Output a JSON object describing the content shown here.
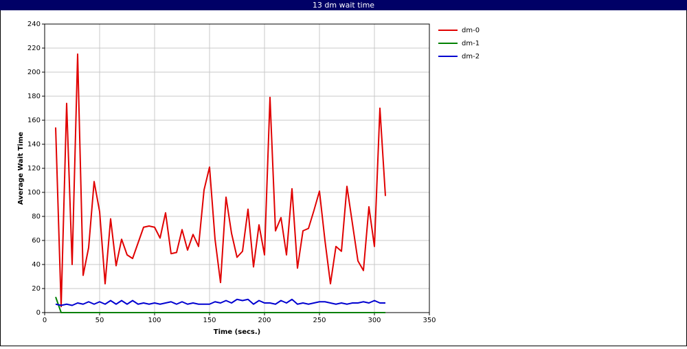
{
  "chart_data": {
    "type": "line",
    "title": "13 dm wait time",
    "x_label": "Time (secs.)",
    "y_label": "Average Wait Time",
    "x": [
      10,
      15,
      20,
      25,
      30,
      35,
      40,
      45,
      50,
      55,
      60,
      65,
      70,
      75,
      80,
      85,
      90,
      95,
      100,
      105,
      110,
      115,
      120,
      125,
      130,
      135,
      140,
      145,
      150,
      155,
      160,
      165,
      170,
      175,
      180,
      185,
      190,
      195,
      200,
      205,
      210,
      215,
      220,
      225,
      230,
      235,
      240,
      245,
      250,
      255,
      260,
      265,
      270,
      275,
      280,
      285,
      290,
      295,
      300,
      305,
      310
    ],
    "series": [
      {
        "name": "dm-0",
        "color": "#e00000",
        "values": [
          154,
          5,
          174,
          40,
          215,
          31,
          54,
          109,
          84,
          24,
          78,
          39,
          61,
          48,
          45,
          58,
          71,
          72,
          71,
          62,
          83,
          49,
          50,
          69,
          52,
          65,
          55,
          102,
          121,
          61,
          25,
          96,
          66,
          46,
          51,
          86,
          38,
          73,
          48,
          179,
          68,
          79,
          48,
          103,
          37,
          68,
          70,
          85,
          101,
          60,
          24,
          55,
          51,
          105,
          74,
          43,
          35,
          88,
          55,
          170,
          97
        ]
      },
      {
        "name": "dm-1",
        "color": "#008000",
        "values": [
          13,
          0,
          0,
          0,
          0,
          0,
          0,
          0,
          0,
          0,
          0,
          0,
          0,
          0,
          0,
          0,
          0,
          0,
          0,
          0,
          0,
          0,
          0,
          0,
          0,
          0,
          0,
          0,
          0,
          0,
          0,
          0,
          0,
          0,
          0,
          0,
          0,
          0,
          0,
          0,
          0,
          0,
          0,
          0,
          0,
          0,
          0,
          0,
          0,
          0,
          0,
          0,
          0,
          0,
          0,
          0,
          0,
          0,
          0,
          0,
          0
        ]
      },
      {
        "name": "dm-2",
        "color": "#0000d0",
        "values": [
          7,
          6,
          7,
          6,
          8,
          7,
          9,
          7,
          9,
          7,
          10,
          7,
          10,
          7,
          10,
          7,
          8,
          7,
          8,
          7,
          8,
          9,
          7,
          9,
          7,
          8,
          7,
          7,
          7,
          9,
          8,
          10,
          8,
          11,
          10,
          11,
          7,
          10,
          8,
          8,
          7,
          10,
          8,
          11,
          7,
          8,
          7,
          8,
          9,
          9,
          8,
          7,
          8,
          7,
          8,
          8,
          9,
          8,
          10,
          8,
          8
        ]
      }
    ],
    "xlim": [
      0,
      350
    ],
    "xticks": [
      0,
      50,
      100,
      150,
      200,
      250,
      300,
      350
    ],
    "ylim": [
      0,
      240
    ],
    "yticks": [
      0,
      20,
      40,
      60,
      80,
      100,
      120,
      140,
      160,
      180,
      200,
      220,
      240
    ],
    "grid": true,
    "legend": "right"
  }
}
